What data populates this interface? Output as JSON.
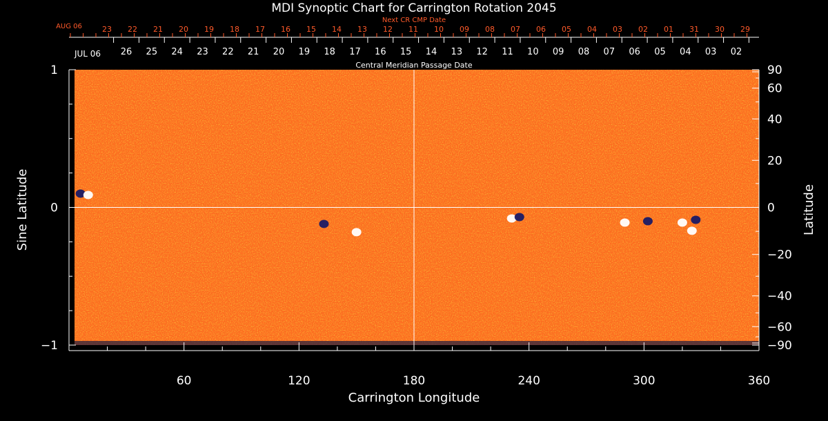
{
  "chart_data": {
    "type": "heatmap",
    "title": "MDI Synoptic Chart for Carrington Rotation 2045",
    "top_red_label": "Next CR CMP Date",
    "top_red_start": "AUG 06",
    "top_red_ticks": [
      "23",
      "22",
      "21",
      "20",
      "19",
      "18",
      "17",
      "16",
      "15",
      "14",
      "13",
      "12",
      "11",
      "10",
      "09",
      "08",
      "07",
      "06",
      "05",
      "04",
      "03",
      "02",
      "01",
      "31",
      "30",
      "29"
    ],
    "top_white_start": "JUL 06",
    "top_white_ticks": [
      "26",
      "25",
      "24",
      "23",
      "22",
      "21",
      "20",
      "19",
      "18",
      "17",
      "16",
      "15",
      "14",
      "13",
      "12",
      "11",
      "10",
      "09",
      "08",
      "07",
      "06",
      "05",
      "04",
      "03",
      "02"
    ],
    "cmp_label": "Central Meridian Passage Date",
    "xlabel": "Carrington Longitude",
    "ylabel_left": "Sine Latitude",
    "ylabel_right": "Latitude",
    "xlim": [
      0,
      360
    ],
    "ylim": [
      -1,
      1
    ],
    "x_ticks": [
      60,
      120,
      180,
      240,
      300,
      360
    ],
    "y_ticks_left": [
      1,
      0,
      -1
    ],
    "y_ticks_left_labels": [
      "1",
      "0",
      "−1"
    ],
    "y_ticks_right": [
      90,
      60,
      40,
      20,
      0,
      -20,
      -40,
      -60,
      -90
    ],
    "y_ticks_right_labels": [
      "90",
      "60",
      "40",
      "20",
      "0",
      "−20",
      "−40",
      "−60",
      "−90"
    ],
    "grid_lines": {
      "longitude": 180,
      "sine_latitude": 0
    },
    "colormap": {
      "background": "#ff6a1e",
      "positive": "#ffffff",
      "negative": "#1a1a66"
    },
    "active_regions": [
      {
        "lon": 6,
        "sinlat": 0.1,
        "polarity": "negative"
      },
      {
        "lon": 10,
        "sinlat": 0.09,
        "polarity": "positive"
      },
      {
        "lon": 133,
        "sinlat": -0.12,
        "polarity": "negative"
      },
      {
        "lon": 150,
        "sinlat": -0.18,
        "polarity": "positive"
      },
      {
        "lon": 231,
        "sinlat": -0.08,
        "polarity": "positive"
      },
      {
        "lon": 235,
        "sinlat": -0.07,
        "polarity": "negative"
      },
      {
        "lon": 290,
        "sinlat": -0.11,
        "polarity": "positive"
      },
      {
        "lon": 302,
        "sinlat": -0.1,
        "polarity": "negative"
      },
      {
        "lon": 320,
        "sinlat": -0.11,
        "polarity": "positive"
      },
      {
        "lon": 327,
        "sinlat": -0.09,
        "polarity": "negative"
      },
      {
        "lon": 325,
        "sinlat": -0.17,
        "polarity": "positive"
      }
    ]
  }
}
